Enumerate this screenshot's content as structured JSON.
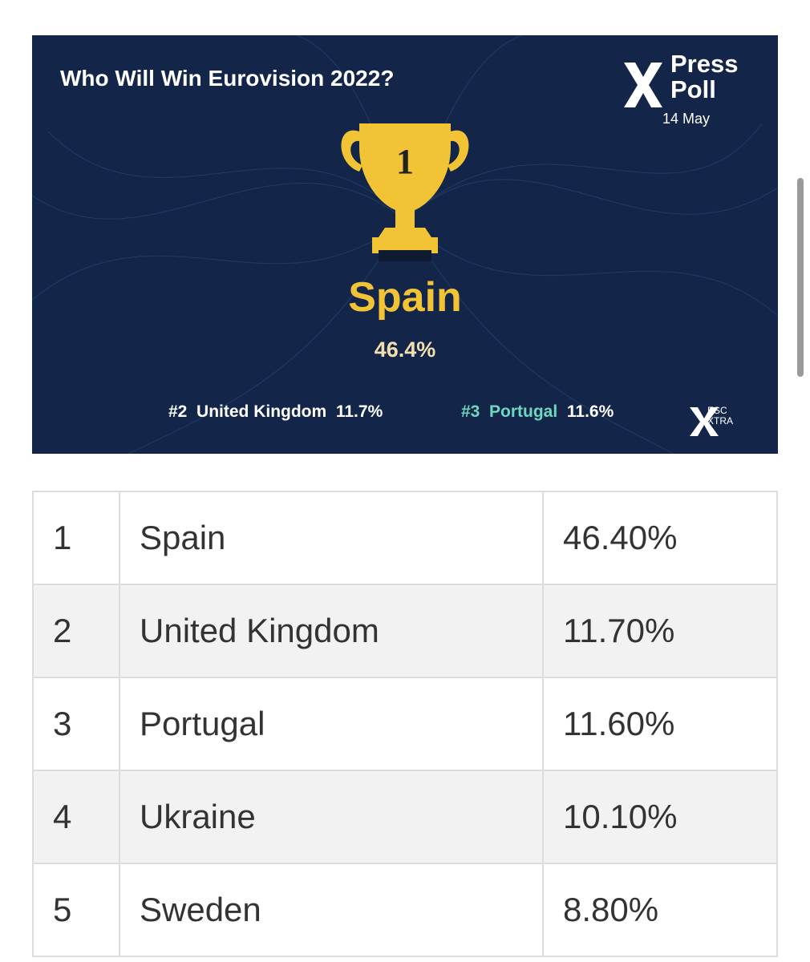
{
  "banner": {
    "title": "Who Will Win Eurovision 2022?",
    "logo": {
      "line1": "Press",
      "line2": "Poll"
    },
    "date": "14 May",
    "trophy_rank": "1",
    "winner": {
      "name": "Spain",
      "share": "46.4%"
    },
    "runners_up": [
      {
        "rank": "#2",
        "name": "United Kingdom",
        "share": "11.7%"
      },
      {
        "rank": "#3",
        "name": "Portugal",
        "share": "11.6%"
      }
    ],
    "brand": {
      "line1": "ESC",
      "line2": "XTRA"
    }
  },
  "table": {
    "rows": [
      [
        "1",
        "Spain",
        "46.40%"
      ],
      [
        "2",
        "United Kingdom",
        "11.70%"
      ],
      [
        "3",
        "Portugal",
        "11.60%"
      ],
      [
        "4",
        "Ukraine",
        "10.10%"
      ],
      [
        "5",
        "Sweden",
        "8.80%"
      ]
    ]
  }
}
